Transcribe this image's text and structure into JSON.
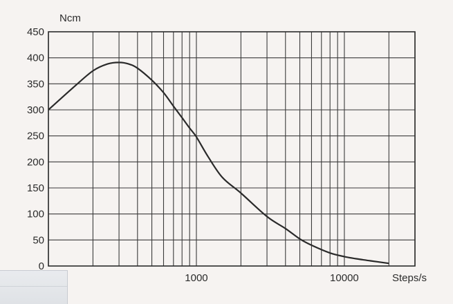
{
  "chart_data": {
    "type": "line",
    "title": "",
    "xlabel": "Steps/s",
    "ylabel": "Ncm",
    "x_scale": "log",
    "xlim": [
      100,
      30000
    ],
    "ylim": [
      0,
      450
    ],
    "grid": true,
    "x_tick_labels": [
      "1000",
      "10000"
    ],
    "x_tick_values": [
      1000,
      10000
    ],
    "y_ticks": [
      0,
      50,
      100,
      150,
      200,
      250,
      300,
      350,
      400,
      450
    ],
    "series": [
      {
        "name": "",
        "x": [
          100,
          150,
          200,
          250,
          300,
          350,
          400,
          500,
          600,
          700,
          800,
          900,
          1000,
          1200,
          1500,
          2000,
          3000,
          4000,
          5000,
          6000,
          8000,
          10000,
          12000,
          15000,
          20000
        ],
        "y": [
          300,
          345,
          375,
          388,
          391,
          388,
          380,
          357,
          333,
          307,
          285,
          265,
          248,
          210,
          170,
          140,
          95,
          72,
          52,
          40,
          25,
          18,
          14,
          10,
          5
        ]
      }
    ]
  }
}
